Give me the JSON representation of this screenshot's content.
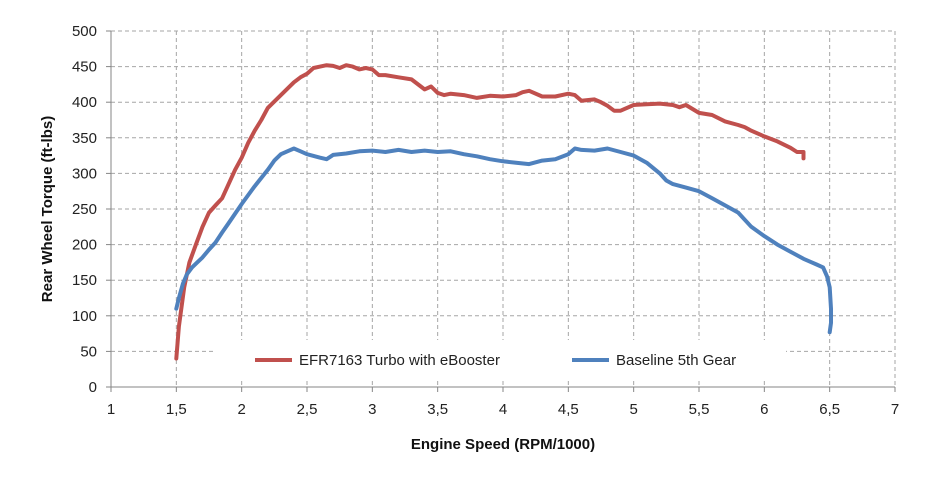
{
  "chart_data": {
    "type": "line",
    "xlabel": "Engine Speed (RPM/1000)",
    "ylabel": "Rear Wheel Torque (ft-lbs)",
    "xlim": [
      1,
      7
    ],
    "ylim": [
      0,
      500
    ],
    "xticks": [
      1,
      1.5,
      2,
      2.5,
      3,
      3.5,
      4,
      4.5,
      5,
      5.5,
      6,
      6.5,
      7
    ],
    "xtick_labels": [
      "1",
      "1,5",
      "2",
      "2,5",
      "3",
      "3,5",
      "4",
      "4,5",
      "5",
      "5,5",
      "6",
      "6,5",
      "7"
    ],
    "yticks": [
      0,
      50,
      100,
      150,
      200,
      250,
      300,
      350,
      400,
      450,
      500
    ],
    "ytick_labels": [
      "0",
      "50",
      "100",
      "150",
      "200",
      "250",
      "300",
      "350",
      "400",
      "450",
      "500"
    ],
    "grid": true,
    "legend_position": "bottom-center-inside",
    "series": [
      {
        "name": "EFR7163 Turbo with eBooster",
        "color": "#c0504d",
        "x": [
          1.5,
          1.52,
          1.56,
          1.6,
          1.65,
          1.7,
          1.75,
          1.8,
          1.85,
          1.9,
          1.95,
          2.0,
          2.05,
          2.1,
          2.15,
          2.2,
          2.3,
          2.4,
          2.45,
          2.5,
          2.55,
          2.6,
          2.65,
          2.7,
          2.75,
          2.8,
          2.85,
          2.9,
          2.95,
          3.0,
          3.05,
          3.1,
          3.2,
          3.3,
          3.4,
          3.45,
          3.5,
          3.55,
          3.6,
          3.7,
          3.8,
          3.9,
          4.0,
          4.1,
          4.15,
          4.2,
          4.3,
          4.4,
          4.5,
          4.55,
          4.6,
          4.7,
          4.75,
          4.8,
          4.85,
          4.9,
          5.0,
          5.1,
          5.2,
          5.3,
          5.35,
          5.4,
          5.5,
          5.6,
          5.7,
          5.8,
          5.85,
          5.9,
          6.0,
          6.1,
          6.2,
          6.25,
          6.3,
          6.3
        ],
        "y": [
          40,
          85,
          140,
          175,
          200,
          225,
          245,
          255,
          265,
          285,
          305,
          322,
          343,
          360,
          375,
          392,
          410,
          428,
          435,
          440,
          448,
          450,
          452,
          451,
          448,
          452,
          450,
          446,
          448,
          446,
          438,
          438,
          435,
          432,
          418,
          422,
          413,
          410,
          412,
          410,
          406,
          409,
          408,
          410,
          414,
          416,
          408,
          408,
          412,
          410,
          402,
          404,
          400,
          395,
          388,
          388,
          396,
          397,
          398,
          396,
          393,
          396,
          385,
          382,
          373,
          368,
          365,
          360,
          352,
          345,
          336,
          330,
          330,
          321
        ]
      },
      {
        "name": "Baseline 5th Gear",
        "color": "#4f81bd",
        "x": [
          1.5,
          1.52,
          1.55,
          1.58,
          1.62,
          1.66,
          1.7,
          1.75,
          1.8,
          1.85,
          1.9,
          2.0,
          2.1,
          2.2,
          2.25,
          2.3,
          2.35,
          2.4,
          2.45,
          2.5,
          2.6,
          2.65,
          2.7,
          2.8,
          2.9,
          3.0,
          3.1,
          3.2,
          3.3,
          3.4,
          3.5,
          3.6,
          3.7,
          3.8,
          3.9,
          4.0,
          4.1,
          4.2,
          4.3,
          4.4,
          4.5,
          4.55,
          4.6,
          4.7,
          4.8,
          4.9,
          5.0,
          5.1,
          5.2,
          5.25,
          5.3,
          5.4,
          5.5,
          5.6,
          5.7,
          5.8,
          5.85,
          5.9,
          6.0,
          6.1,
          6.2,
          6.3,
          6.35,
          6.4,
          6.45,
          6.48,
          6.5,
          6.51,
          6.51,
          6.5
        ],
        "y": [
          110,
          125,
          145,
          158,
          168,
          175,
          182,
          193,
          203,
          217,
          230,
          257,
          282,
          305,
          318,
          327,
          331,
          335,
          331,
          327,
          322,
          320,
          326,
          328,
          331,
          332,
          330,
          333,
          330,
          332,
          330,
          331,
          327,
          324,
          320,
          317,
          315,
          313,
          318,
          320,
          327,
          335,
          333,
          332,
          335,
          330,
          325,
          315,
          300,
          290,
          285,
          280,
          275,
          265,
          255,
          245,
          235,
          225,
          212,
          200,
          190,
          180,
          176,
          172,
          168,
          155,
          140,
          110,
          90,
          77
        ]
      }
    ]
  }
}
